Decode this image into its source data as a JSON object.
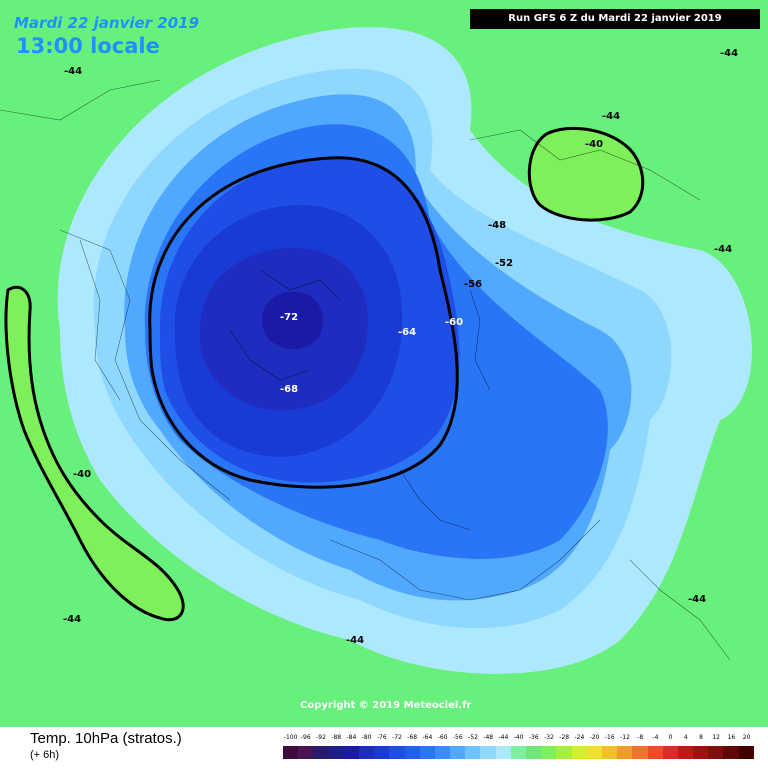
{
  "header": {
    "date": "Mardi 22 janvier 2019",
    "time": "13:00 locale",
    "run": "Run GFS 6 Z du Mardi 22 janvier 2019"
  },
  "isolabels": [
    {
      "text": "-44",
      "color": "dark"
    },
    {
      "text": "-44",
      "color": "dark"
    },
    {
      "text": "-44",
      "color": "dark"
    },
    {
      "text": "-40",
      "color": "dark"
    },
    {
      "text": "-44",
      "color": "dark"
    },
    {
      "text": "-48",
      "color": "dark"
    },
    {
      "text": "-52",
      "color": "dark"
    },
    {
      "text": "-56",
      "color": "dark"
    },
    {
      "text": "-60",
      "color": "light"
    },
    {
      "text": "-64",
      "color": "light"
    },
    {
      "text": "-72",
      "color": "light"
    },
    {
      "text": "-68",
      "color": "light"
    },
    {
      "text": "-40",
      "color": "dark"
    },
    {
      "text": "-44",
      "color": "dark"
    },
    {
      "text": "-44",
      "color": "dark"
    },
    {
      "text": "-44",
      "color": "dark"
    }
  ],
  "copyright": "Copyright © 2019 Meteociel.fr",
  "footer": {
    "variable": "Temp. 10hPa (stratos.)",
    "lead": "(+ 6h)"
  },
  "scale": {
    "labels": [
      "-100",
      "-96",
      "-92",
      "-88",
      "-84",
      "-80",
      "-76",
      "-72",
      "-68",
      "-64",
      "-60",
      "-56",
      "-52",
      "-48",
      "-44",
      "-40",
      "-36",
      "-32",
      "-28",
      "-24",
      "-20",
      "-16",
      "-12",
      "-8",
      "-4",
      "0",
      "4",
      "8",
      "12",
      "16",
      "20"
    ],
    "colors": [
      "#3d0c3d",
      "#4a1550",
      "#2a1a6e",
      "#1e1e8a",
      "#1a1aa6",
      "#1e2cc0",
      "#1a3ad6",
      "#1e4ee6",
      "#2060f0",
      "#2a74f6",
      "#3a8cff",
      "#50a8ff",
      "#6cc4ff",
      "#8ed8ff",
      "#aee8ff",
      "#7cf0a0",
      "#6ee67a",
      "#7ef05a",
      "#a6f03c",
      "#d6f028",
      "#f0e028",
      "#f0c028",
      "#f09a28",
      "#f07228",
      "#f04a28",
      "#e02828",
      "#c01818",
      "#a01010",
      "#801010",
      "#600808",
      "#400000"
    ]
  },
  "colors": {
    "outer_green": "#68f07c",
    "band_minus44": "#7cf0a0",
    "band_minus48": "#aee8ff",
    "band_minus52": "#8ed8ff",
    "band_minus56": "#50a8ff",
    "band_minus60": "#2a74f6",
    "band_minus64": "#1e4ee6",
    "band_minus68": "#1a3ad6",
    "band_minus72": "#1e2cc0",
    "warm_green": "#7ef05a"
  }
}
